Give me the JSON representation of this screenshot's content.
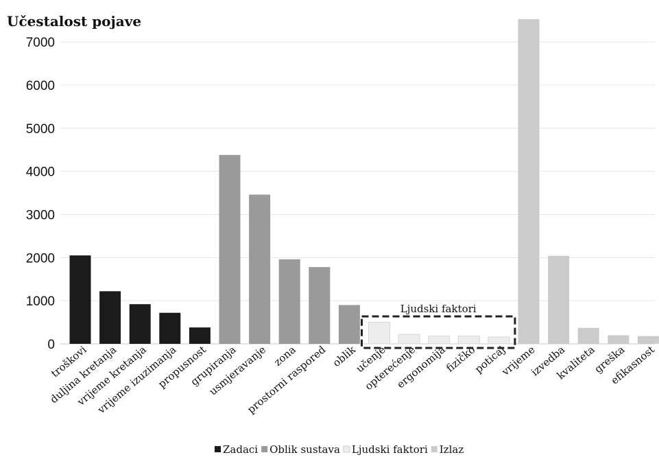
{
  "chart_data": {
    "type": "bar",
    "ylabel": "Učestalost pojave",
    "xlabel": "",
    "ylim": [
      0,
      7400
    ],
    "yticks": [
      0,
      1000,
      2000,
      3000,
      4000,
      5000,
      6000,
      7000
    ],
    "grid": true,
    "legend_position": "bottom",
    "annotation": "Ljudski faktori",
    "series": [
      {
        "name": "Zadaci",
        "color": "#1b1b1b",
        "categories": [
          "troškovi",
          "duljina kretanja",
          "vrijeme kretanja",
          "vrijeme izuzimanja",
          "propusnost"
        ],
        "values": [
          2050,
          1220,
          920,
          720,
          380
        ]
      },
      {
        "name": "Oblik sustava",
        "color": "#9a9a9a",
        "categories": [
          "grupiranja",
          "usmjeravanje",
          "zona",
          "prostorni raspored",
          "oblik"
        ],
        "values": [
          4380,
          3460,
          1960,
          1780,
          900
        ]
      },
      {
        "name": "Ljudski faktori",
        "color": "#ededed",
        "categories": [
          "učenje",
          "opterećenje",
          "ergonomija",
          "fizičko",
          "poticaj"
        ],
        "values": [
          500,
          220,
          180,
          180,
          160
        ]
      },
      {
        "name": "Izlaz",
        "color": "#cbcbcb",
        "categories": [
          "vrijeme",
          "izvedba",
          "kvaliteta",
          "greška",
          "efikasnost"
        ],
        "values": [
          7530,
          2040,
          370,
          200,
          180
        ]
      }
    ]
  }
}
